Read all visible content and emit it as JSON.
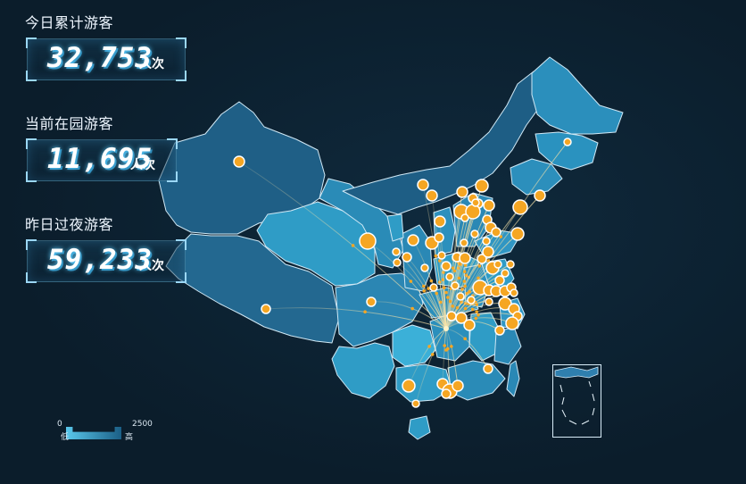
{
  "stats": [
    {
      "label": "今日累计游客",
      "value": "32,753",
      "unit": "人次"
    },
    {
      "label": "当前在园游客",
      "value": "11,695",
      "unit": "人次"
    },
    {
      "label": "昨日过夜游客",
      "value": "59,233",
      "unit": "人次"
    }
  ],
  "legend": {
    "min": "0",
    "max": "2500",
    "low_label": "低",
    "high_label": "高"
  },
  "colors": {
    "background": "#0c1f2e",
    "province_fill_dark": "#1f5f86",
    "province_fill_light": "#2f9cc6",
    "province_border": "#cfe8f5",
    "marker": "#f5a623",
    "marker_border": "#ffffff",
    "flow_line": "#f2d48c"
  },
  "map": {
    "region": "China",
    "destination": "Guizhou",
    "origin_count": 71
  }
}
